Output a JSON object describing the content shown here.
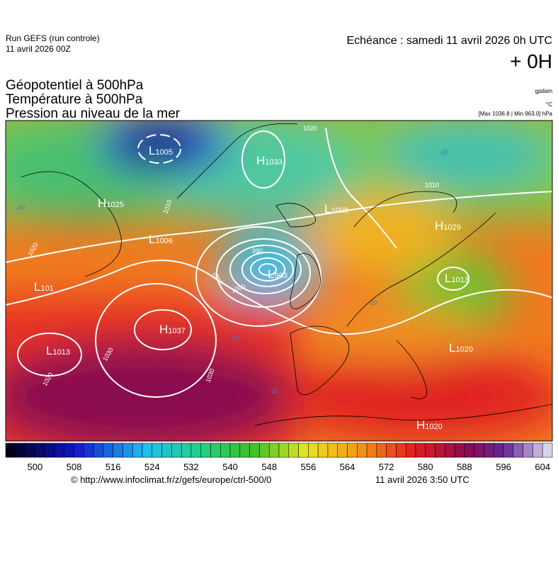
{
  "header": {
    "run": "Run GEFS (run controle)",
    "run_date": "11 avril 2026 00Z",
    "echeance": "Echéance : samedi 11 avril 2026 0h UTC",
    "step": "+ 0H"
  },
  "titles": [
    "Géopotentiel à 500hPa",
    "Température à 500hPa",
    "Pression au niveau de la mer"
  ],
  "units": {
    "geopotential": "gpdam",
    "temperature": "°C",
    "pressure": "[Max 1036.8 | Min 963.0] hPa"
  },
  "map": {
    "centers": [
      {
        "kind": "L",
        "value": "1005"
      },
      {
        "kind": "H",
        "value": "1033"
      },
      {
        "kind": "H",
        "value": "1025"
      },
      {
        "kind": "L",
        "value": "1008"
      },
      {
        "kind": "L",
        "value": "1006"
      },
      {
        "kind": "H",
        "value": "1029"
      },
      {
        "kind": "L",
        "value": "963"
      },
      {
        "kind": "L",
        "value": "1013"
      },
      {
        "kind": "L",
        "value": "101"
      },
      {
        "kind": "H",
        "value": "1037"
      },
      {
        "kind": "L",
        "value": "1013"
      },
      {
        "kind": "L",
        "value": "1020"
      },
      {
        "kind": "H",
        "value": "1020"
      }
    ],
    "isobar_labels": [
      "1030",
      "1020",
      "1030",
      "1000",
      "1010",
      "990",
      "1010",
      "1020",
      "1020",
      "1010"
    ],
    "temperature_labels": [
      "-30",
      "-20",
      "-20",
      "-30",
      "-20"
    ]
  },
  "colorbar": {
    "ticks": [
      500,
      508,
      516,
      524,
      532,
      540,
      548,
      556,
      564,
      572,
      580,
      588,
      596,
      604
    ]
  },
  "footer": {
    "source": "© http://www.infoclimat.fr/z/gefs/europe/ctrl-500/0",
    "generated": "11 avril 2026  3:50 UTC"
  }
}
